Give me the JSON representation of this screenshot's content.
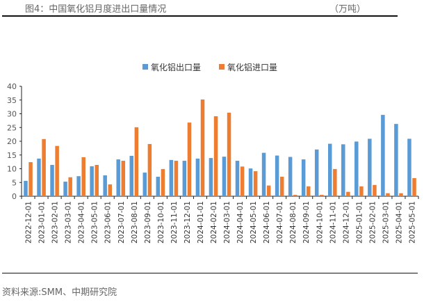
{
  "header": {
    "title": "图4：中国氧化铝月度进出口量情况",
    "unit": "（万吨）"
  },
  "footer": {
    "source": "资料来源:SMM、中期研究院"
  },
  "chart_data": {
    "type": "bar",
    "title": "",
    "xlabel": "",
    "ylabel": "万吨",
    "ylim": [
      0,
      40
    ],
    "yticks": [
      0,
      5,
      10,
      15,
      20,
      25,
      30,
      35,
      40
    ],
    "legend_position": "top-center",
    "categories": [
      "2022-12-01",
      "2023-01-01",
      "2023-02-01",
      "2023-03-01",
      "2023-04-01",
      "2023-05-01",
      "2023-06-01",
      "2023-07-01",
      "2023-08-01",
      "2023-09-01",
      "2023-10-01",
      "2023-11-01",
      "2023-12-01",
      "2024-01-01",
      "2024-02-01",
      "2024-03-01",
      "2024-04-01",
      "2024-05-01",
      "2024-06-01",
      "2024-07-01",
      "2024-08-01",
      "2024-09-01",
      "2024-10-01",
      "2024-11-01",
      "2024-12-01",
      "2025-01-01",
      "2025-02-01",
      "2025-03-01",
      "2025-04-01",
      "2025-05-01"
    ],
    "series": [
      {
        "name": "氧化铝出口量",
        "color": "#5b9bd5",
        "values": [
          5.6,
          13.7,
          11.4,
          5.3,
          7.3,
          10.9,
          7.6,
          13.4,
          14.7,
          8.6,
          7.1,
          13.2,
          12.9,
          13.7,
          13.9,
          14.4,
          12.9,
          10.1,
          15.8,
          14.8,
          14.3,
          13.4,
          17.0,
          19.1,
          18.9,
          19.9,
          20.9,
          29.6,
          26.3,
          20.9
        ]
      },
      {
        "name": "氧化铝进口量",
        "color": "#ed7d31",
        "values": [
          12.4,
          20.8,
          18.3,
          6.9,
          14.2,
          11.4,
          4.3,
          12.9,
          25.1,
          19.0,
          9.9,
          12.9,
          26.8,
          35.2,
          29.1,
          30.4,
          10.8,
          9.1,
          3.9,
          7.1,
          0.5,
          3.6,
          0.5,
          9.9,
          1.6,
          3.6,
          4.1,
          1.1,
          1.1,
          6.6
        ]
      }
    ]
  }
}
